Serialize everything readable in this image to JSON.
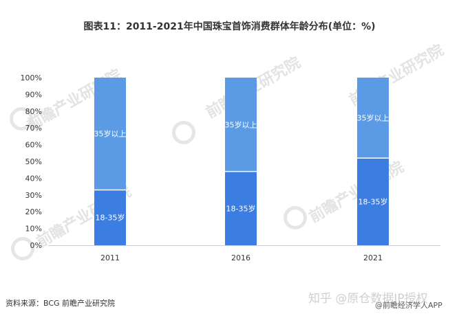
{
  "title": "图表11：2011-2021年中国珠宝首饰消费群体年龄分布(单位：%)",
  "source": "资料来源：BCG 前瞻产业研究院",
  "watermarks": {
    "logo_text": "前瞻产业研究院",
    "zhihu": "知乎 @原仓数据IP授权",
    "app": "@前瞻经济学人APP"
  },
  "colors": {
    "under35": "#3b7de0",
    "over35": "#5b9be6",
    "separator": "#ffffff",
    "axis_text": "#333333"
  },
  "chart_data": {
    "type": "bar",
    "stacked": true,
    "percent": true,
    "categories": [
      "2011",
      "2016",
      "2021"
    ],
    "series": [
      {
        "name": "18-35岁",
        "values": [
          33,
          44,
          52
        ]
      },
      {
        "name": "35岁以上",
        "values": [
          67,
          56,
          48
        ]
      }
    ],
    "ylim": [
      0,
      100
    ],
    "yticks": [
      "0%",
      "10%",
      "20%",
      "30%",
      "40%",
      "50%",
      "60%",
      "70%",
      "80%",
      "90%",
      "100%"
    ],
    "grid": false,
    "legend": "none"
  }
}
